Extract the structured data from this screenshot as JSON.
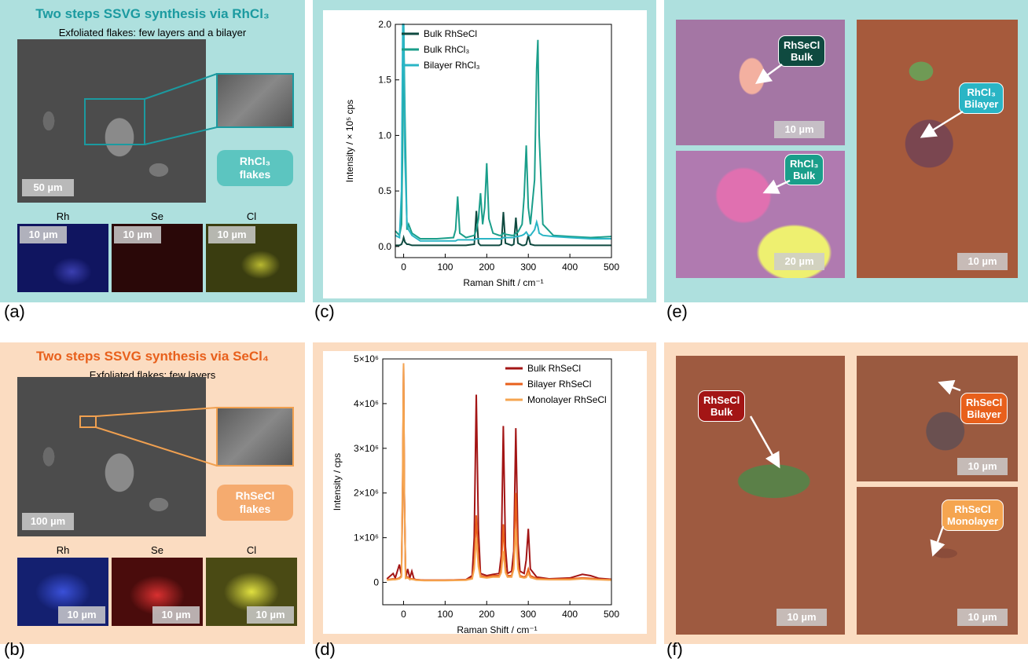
{
  "panel_labels": [
    "(a)",
    "(b)",
    "(c)",
    "(d)",
    "(e)",
    "(f)"
  ],
  "panel_a": {
    "title": "Two steps SSVG synthesis via RhCl₃",
    "subtitle": "Exfoliated flakes: few layers and a bilayer",
    "scale_bar": "50 µm",
    "flakes_label": [
      "RhCl₃",
      "flakes"
    ],
    "maps": [
      {
        "element": "Rh",
        "scale_bar": "10 µm"
      },
      {
        "element": "Se",
        "scale_bar": "10 µm"
      },
      {
        "element": "Cl",
        "scale_bar": "10 µm"
      }
    ]
  },
  "panel_b": {
    "title": "Two steps SSVG synthesis via SeCl₄",
    "subtitle": "Exfoliated flakes: few layers",
    "scale_bar": "100 µm",
    "flakes_label": [
      "RhSeCl",
      "flakes"
    ],
    "maps": [
      {
        "element": "Rh",
        "scale_bar": "10 µm"
      },
      {
        "element": "Se",
        "scale_bar": "10 µm"
      },
      {
        "element": "Cl",
        "scale_bar": "10 µm"
      }
    ]
  },
  "panel_e": {
    "images": [
      {
        "label": [
          "RhSeCl",
          "Bulk"
        ],
        "scale_bar": "10 µm"
      },
      {
        "label": [
          "RhCl₃",
          "Bulk"
        ],
        "scale_bar": "20 µm"
      },
      {
        "label": [
          "RhCl₃",
          "Bilayer"
        ],
        "scale_bar": "10 µm"
      }
    ]
  },
  "panel_f": {
    "images": [
      {
        "label": [
          "RhSeCl",
          "Bulk"
        ],
        "scale_bar": "10 µm"
      },
      {
        "label": [
          "RhSeCl",
          "Bilayer"
        ],
        "scale_bar": "10 µm"
      },
      {
        "label": [
          "RhSeCl",
          "Monolayer"
        ],
        "scale_bar": "10 µm"
      }
    ]
  },
  "chart_data": [
    {
      "type": "line",
      "xlabel": "Raman Shift / cm⁻¹",
      "ylabel": "Intensity / × 10⁵ cps",
      "xlim": [
        -20,
        500
      ],
      "ylim": [
        -0.1,
        2.0
      ],
      "xticks": [
        0,
        100,
        200,
        300,
        400,
        500
      ],
      "yticks": [
        {
          "value": 0,
          "label": "0.0"
        },
        0.5,
        {
          "value": 1,
          "label": "1.0"
        },
        1.5,
        {
          "value": 2,
          "label": "2.0"
        }
      ],
      "legend": "upper left",
      "x": [
        -20,
        -10,
        -5,
        -2,
        0,
        3,
        8,
        12,
        20,
        40,
        80,
        120,
        125,
        130,
        135,
        150,
        170,
        175,
        180,
        185,
        190,
        195,
        200,
        205,
        215,
        230,
        235,
        240,
        245,
        260,
        265,
        270,
        275,
        285,
        290,
        295,
        300,
        305,
        315,
        320,
        323,
        326,
        335,
        360,
        400,
        450,
        500
      ],
      "series": [
        {
          "name": "Bulk RhSeCl",
          "color": "#0f4a40",
          "values": [
            0.01,
            0.01,
            0.02,
            0.05,
            0.08,
            0.04,
            0.02,
            0.02,
            0.01,
            0.01,
            0.01,
            0.01,
            0.01,
            0.01,
            0.01,
            0.01,
            0.02,
            0.32,
            0.03,
            0.01,
            0.01,
            0.01,
            0.01,
            0.01,
            0.01,
            0.01,
            0.02,
            0.31,
            0.03,
            0.01,
            0.02,
            0.26,
            0.03,
            0.01,
            0.01,
            0.02,
            0.1,
            0.02,
            0.01,
            0.01,
            0.01,
            0.01,
            0.01,
            0.01,
            0.01,
            0.01,
            0.01
          ]
        },
        {
          "name": "Bulk RhCl₃",
          "color": "#1a9e8a",
          "values": [
            0.14,
            0.1,
            0.2,
            1.0,
            2.0,
            1.2,
            0.15,
            0.2,
            0.12,
            0.07,
            0.07,
            0.08,
            0.15,
            0.45,
            0.12,
            0.08,
            0.1,
            0.15,
            0.25,
            0.48,
            0.2,
            0.35,
            0.75,
            0.25,
            0.12,
            0.1,
            0.1,
            0.12,
            0.11,
            0.1,
            0.1,
            0.12,
            0.13,
            0.2,
            0.45,
            0.91,
            0.35,
            0.2,
            0.6,
            1.6,
            1.86,
            1.0,
            0.2,
            0.1,
            0.09,
            0.08,
            0.09
          ]
        },
        {
          "name": "Bilayer RhCl₃",
          "color": "#2ab5c5",
          "values": [
            0.1,
            0.08,
            0.5,
            2.0,
            2.0,
            0.8,
            0.2,
            0.15,
            0.1,
            0.05,
            0.05,
            0.05,
            0.05,
            0.06,
            0.06,
            0.06,
            0.06,
            0.07,
            0.07,
            0.07,
            0.07,
            0.07,
            0.07,
            0.07,
            0.07,
            0.07,
            0.07,
            0.08,
            0.08,
            0.08,
            0.08,
            0.09,
            0.09,
            0.1,
            0.11,
            0.13,
            0.1,
            0.1,
            0.15,
            0.22,
            0.18,
            0.12,
            0.1,
            0.09,
            0.08,
            0.07,
            0.07
          ]
        }
      ]
    },
    {
      "type": "line",
      "xlabel": "Raman Shift / cm⁻¹",
      "ylabel": "Intensity / cps",
      "xlim": [
        -50,
        500
      ],
      "ylim": [
        -500000,
        5000000
      ],
      "xticks": [
        0,
        100,
        200,
        300,
        400,
        500
      ],
      "yticks": [
        0,
        {
          "value": 1000000,
          "label": "1×10⁶"
        },
        {
          "value": 2000000,
          "label": "2×10⁶"
        },
        {
          "value": 3000000,
          "label": "3×10⁶"
        },
        {
          "value": 4000000,
          "label": "4×10⁶"
        },
        {
          "value": 5000000,
          "label": "5×10⁶"
        }
      ],
      "legend": "upper right",
      "x": [
        -40,
        -25,
        -20,
        -10,
        -5,
        -2,
        0,
        2,
        5,
        10,
        15,
        20,
        25,
        30,
        50,
        100,
        150,
        165,
        170,
        175,
        180,
        185,
        200,
        215,
        230,
        235,
        240,
        245,
        250,
        260,
        265,
        270,
        275,
        280,
        290,
        295,
        300,
        305,
        320,
        350,
        400,
        430,
        450,
        470,
        500
      ],
      "series": [
        {
          "name": "Bulk RhSeCl",
          "color": "#a31515",
          "values": [
            80000,
            200000,
            100000,
            400000,
            150000,
            2000000,
            4900000,
            2000000,
            100000,
            300000,
            100000,
            250000,
            80000,
            60000,
            50000,
            50000,
            60000,
            150000,
            1000000,
            4200000,
            1200000,
            200000,
            150000,
            180000,
            200000,
            600000,
            3500000,
            800000,
            200000,
            250000,
            700000,
            3450000,
            900000,
            250000,
            200000,
            500000,
            1200000,
            300000,
            120000,
            80000,
            100000,
            180000,
            150000,
            90000,
            70000
          ]
        },
        {
          "name": "Bilayer RhSeCl",
          "color": "#e8601c",
          "values": [
            60000,
            80000,
            70000,
            100000,
            150000,
            2500000,
            4900000,
            2000000,
            100000,
            120000,
            80000,
            80000,
            70000,
            60000,
            50000,
            50000,
            60000,
            100000,
            400000,
            1500000,
            500000,
            150000,
            120000,
            150000,
            150000,
            300000,
            1300000,
            300000,
            150000,
            150000,
            400000,
            2000000,
            400000,
            150000,
            120000,
            150000,
            300000,
            150000,
            90000,
            70000,
            80000,
            100000,
            90000,
            70000,
            60000
          ]
        },
        {
          "name": "Monolayer RhSeCl",
          "color": "#f5a550",
          "values": [
            50000,
            60000,
            60000,
            80000,
            120000,
            2200000,
            4900000,
            1800000,
            90000,
            100000,
            70000,
            70000,
            60000,
            50000,
            40000,
            40000,
            50000,
            80000,
            300000,
            1000000,
            350000,
            120000,
            100000,
            120000,
            120000,
            220000,
            700000,
            220000,
            120000,
            120000,
            300000,
            1200000,
            300000,
            120000,
            100000,
            110000,
            200000,
            110000,
            70000,
            60000,
            60000,
            80000,
            70000,
            60000,
            50000
          ]
        }
      ]
    }
  ]
}
